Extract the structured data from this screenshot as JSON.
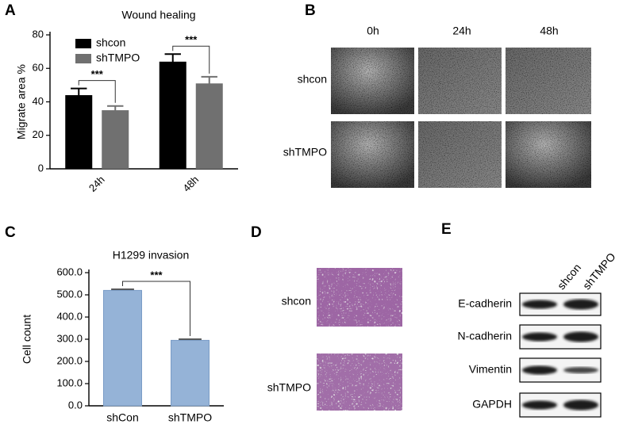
{
  "panel_labels": [
    "A",
    "B",
    "C",
    "D",
    "E"
  ],
  "chart_data": [
    {
      "type": "bar",
      "title": "Wound healing",
      "y_label": "Migrate area %",
      "categories": [
        "24h",
        "48h"
      ],
      "series": [
        {
          "name": "shcon",
          "color": "#000000",
          "values": [
            44,
            64
          ],
          "errors": [
            4,
            4.5
          ]
        },
        {
          "name": "shTMPO",
          "color": "#707070",
          "values": [
            35,
            51
          ],
          "errors": [
            2.5,
            4
          ]
        }
      ],
      "ylim": [
        0,
        80
      ],
      "yticks": [
        0,
        20,
        40,
        60,
        80
      ],
      "legend": "upper left",
      "annotations": [
        "***",
        "***"
      ]
    },
    {
      "type": "bar",
      "title": "H1299 invasion",
      "y_label": "Cell count",
      "categories": [
        "shCon",
        "shTMPO"
      ],
      "values": [
        520,
        295
      ],
      "errors": [
        5,
        5
      ],
      "color": "#95b3d7",
      "ylim": [
        0,
        600
      ],
      "yticks": [
        {
          "value": 0,
          "label": "0.0"
        },
        {
          "value": 100,
          "label": "100.0"
        },
        {
          "value": 200,
          "label": "200.0"
        },
        {
          "value": 300,
          "label": "300.0"
        },
        {
          "value": 400,
          "label": "400.0"
        },
        {
          "value": 500,
          "label": "500.0"
        },
        {
          "value": 600,
          "label": "600.0"
        }
      ],
      "annotations": [
        "***"
      ]
    }
  ],
  "wound_images": {
    "columns": [
      "0h",
      "24h",
      "48h"
    ],
    "rows": [
      "shcon",
      "shTMPO"
    ]
  },
  "transwell_images": {
    "rows": [
      "shcon",
      "shTMPO"
    ]
  },
  "western_blot": {
    "columns": [
      "shcon",
      "shTMPO"
    ],
    "rows": [
      "E-cadherin",
      "N-cadherin",
      "Vimentin",
      "GAPDH"
    ]
  }
}
